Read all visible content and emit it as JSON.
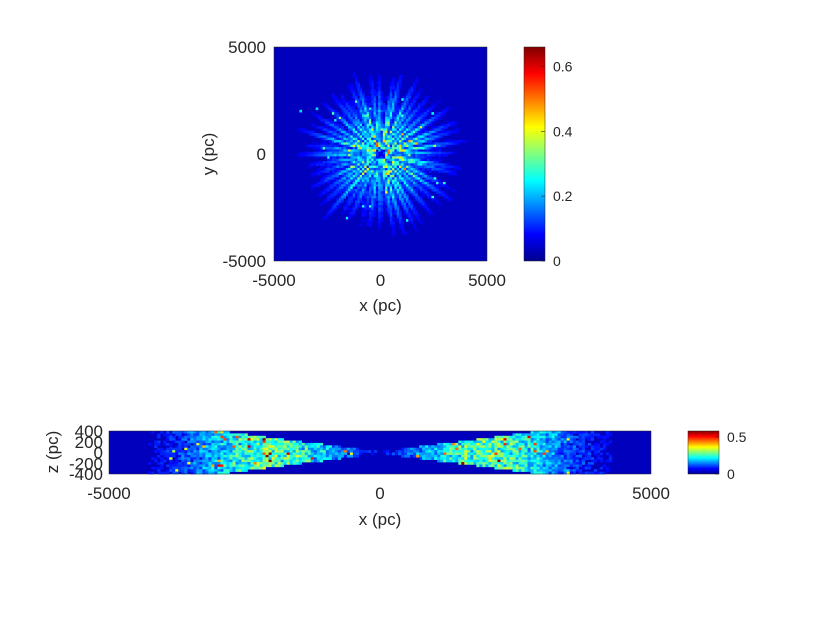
{
  "chart_data": [
    {
      "type": "heatmap",
      "title": "",
      "xlabel": "x (pc)",
      "ylabel": "y (pc)",
      "xlim": [
        -5000,
        5000
      ],
      "ylim": [
        -5000,
        5000
      ],
      "xticks": [
        -5000,
        0,
        5000
      ],
      "yticks": [
        -5000,
        0,
        5000
      ],
      "colormap": "jet",
      "clim": [
        0,
        0.66
      ],
      "colorbar_ticks": [
        0,
        0.2,
        0.4,
        0.6
      ],
      "background_value": 0.0,
      "pattern": "radial streaks emanating from origin; values mostly 0.05-0.35 within r < 3000 pc, occasional peaks up to ~0.45; near-zero outside",
      "grid": false
    },
    {
      "type": "heatmap",
      "title": "",
      "xlabel": "x (pc)",
      "ylabel": "z (pc)",
      "xlim": [
        -5000,
        5000
      ],
      "ylim": [
        -400,
        400
      ],
      "xticks": [
        -5000,
        0,
        5000
      ],
      "yticks": [
        -400,
        -200,
        0,
        200,
        400
      ],
      "colormap": "jet",
      "clim": [
        0,
        0.58
      ],
      "colorbar_ticks": [
        0,
        0.5
      ],
      "background_value": 0.0,
      "pattern": "X-shaped wedge through origin; values mostly 0.05-0.3 with sparse peaks up to ~0.5 around |x| 1500-3000 pc",
      "grid": false
    }
  ],
  "colors": {
    "jet_stops": [
      "#00008f",
      "#0000ff",
      "#00ffff",
      "#ffff00",
      "#ff0000",
      "#800000"
    ],
    "axis_text": "#262626",
    "axis_line": "#262626"
  }
}
